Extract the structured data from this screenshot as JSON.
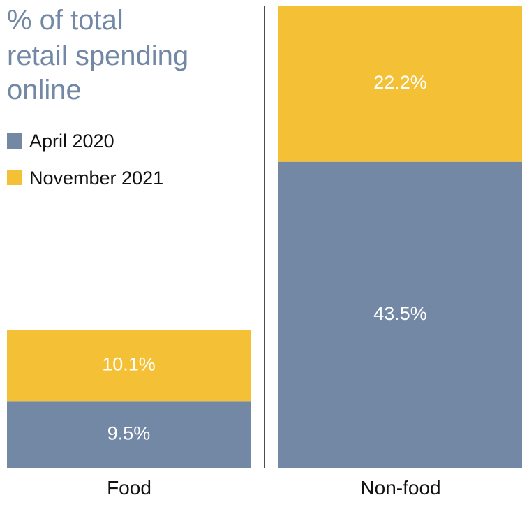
{
  "chart_data": {
    "type": "bar",
    "stacked": true,
    "title_lines": [
      "% of total",
      "retail spending",
      "online"
    ],
    "categories": [
      "Food",
      "Non-food"
    ],
    "series": [
      {
        "name": "April 2020",
        "values": [
          9.5,
          43.5
        ],
        "labels": [
          "9.5%",
          "43.5%"
        ],
        "color": "#7388a5"
      },
      {
        "name": "November 2021",
        "values": [
          10.1,
          22.2
        ],
        "labels": [
          "10.1%",
          "22.2%"
        ],
        "color": "#f4c035"
      }
    ],
    "ylim": [
      0,
      65.7
    ],
    "grid": false,
    "legend_position": "top-left",
    "colors": {
      "title": "#7388a5",
      "divider": "#111111",
      "text": "#111111",
      "bar_text": "#ffffff"
    }
  }
}
